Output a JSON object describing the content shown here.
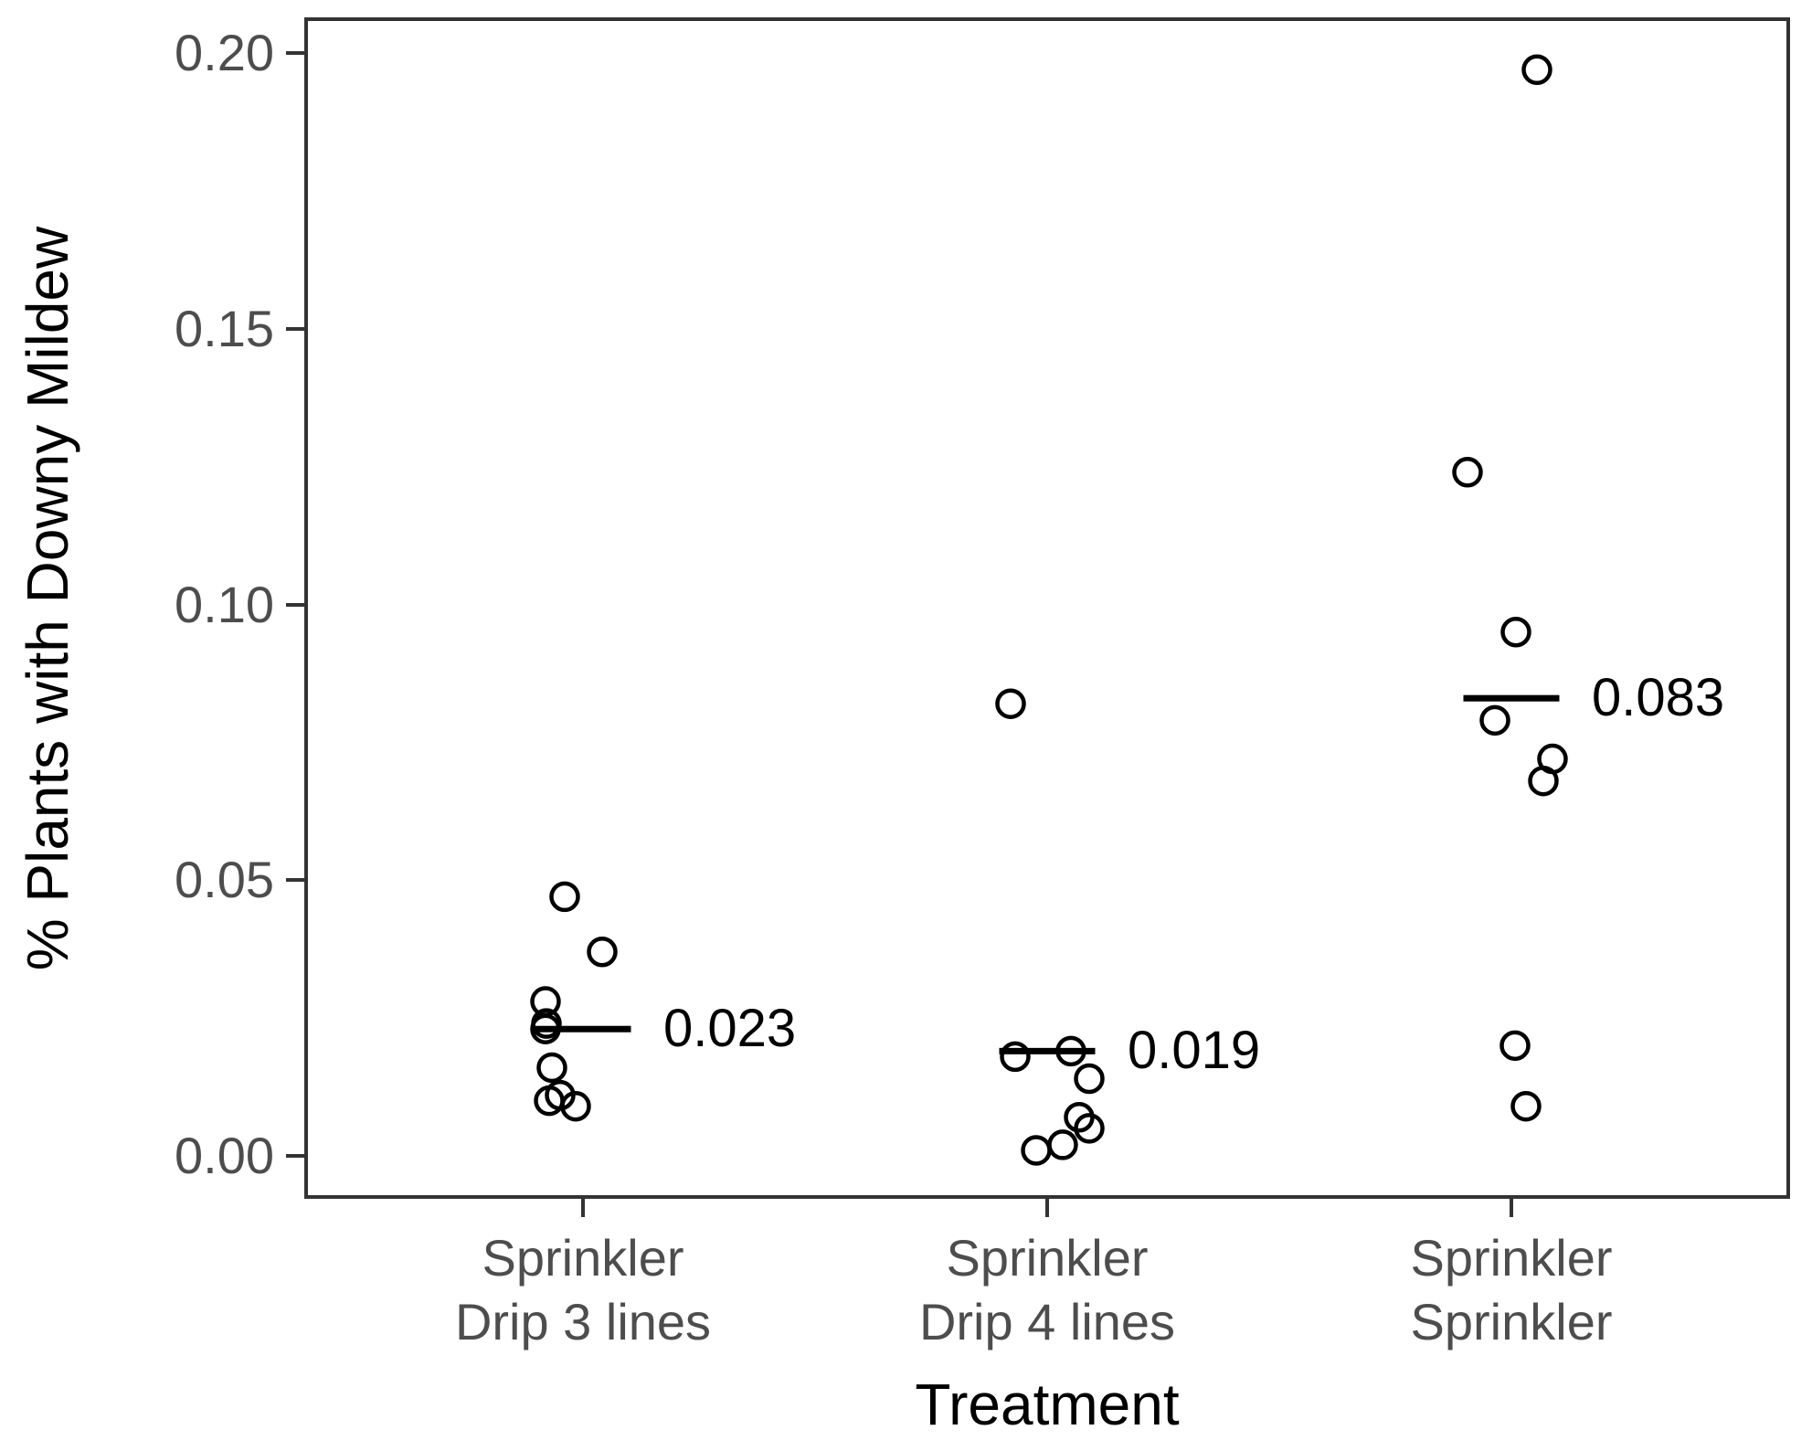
{
  "figure": {
    "background": "#ffffff"
  },
  "chart_data": {
    "type": "scatter",
    "variant": "jittered dot plot with group mean bars",
    "title": "",
    "xlabel": "Treatment",
    "ylabel": "% Plants with Downy Mildew",
    "grid": false,
    "legend": false,
    "ylim": [
      -0.008,
      0.206
    ],
    "yticks": [
      0.0,
      0.05,
      0.1,
      0.15,
      0.2
    ],
    "ytick_labels": [
      "0.00",
      "0.05",
      "0.10",
      "0.15",
      "0.20"
    ],
    "groups": [
      {
        "label_lines": [
          "Sprinkler",
          "Drip 3 lines"
        ],
        "mean": 0.023,
        "mean_label": "0.023",
        "points": [
          {
            "value": 0.047,
            "dx": -20
          },
          {
            "value": 0.037,
            "dx": 21
          },
          {
            "value": 0.028,
            "dx": -41
          },
          {
            "value": 0.024,
            "dx": -40
          },
          {
            "value": 0.023,
            "dx": -41
          },
          {
            "value": 0.016,
            "dx": -34
          },
          {
            "value": 0.011,
            "dx": -25
          },
          {
            "value": 0.01,
            "dx": -37
          },
          {
            "value": 0.009,
            "dx": -8
          }
        ]
      },
      {
        "label_lines": [
          "Sprinkler",
          "Drip 4 lines"
        ],
        "mean": 0.019,
        "mean_label": "0.019",
        "points": [
          {
            "value": 0.082,
            "dx": -40
          },
          {
            "value": 0.019,
            "dx": 26
          },
          {
            "value": 0.018,
            "dx": -35
          },
          {
            "value": 0.014,
            "dx": 46
          },
          {
            "value": 0.007,
            "dx": 35
          },
          {
            "value": 0.005,
            "dx": 46
          },
          {
            "value": 0.002,
            "dx": 17
          },
          {
            "value": 0.001,
            "dx": -12
          }
        ]
      },
      {
        "label_lines": [
          "Sprinkler",
          "Sprinkler"
        ],
        "mean": 0.083,
        "mean_label": "0.083",
        "points": [
          {
            "value": 0.197,
            "dx": 28
          },
          {
            "value": 0.124,
            "dx": -48
          },
          {
            "value": 0.095,
            "dx": 5
          },
          {
            "value": 0.079,
            "dx": -18
          },
          {
            "value": 0.072,
            "dx": 45
          },
          {
            "value": 0.068,
            "dx": 35
          },
          {
            "value": 0.02,
            "dx": 4
          },
          {
            "value": 0.009,
            "dx": 16
          }
        ]
      }
    ]
  },
  "style": {
    "point_color": "#000000",
    "point_shape": "open-circle",
    "mean_line_color": "#000000",
    "axis_tick_color": "#333333",
    "axis_text_color": "#4d4d4d",
    "axis_title_color": "#000000",
    "panel_border_color": "#333333",
    "background_color": "#ffffff"
  }
}
